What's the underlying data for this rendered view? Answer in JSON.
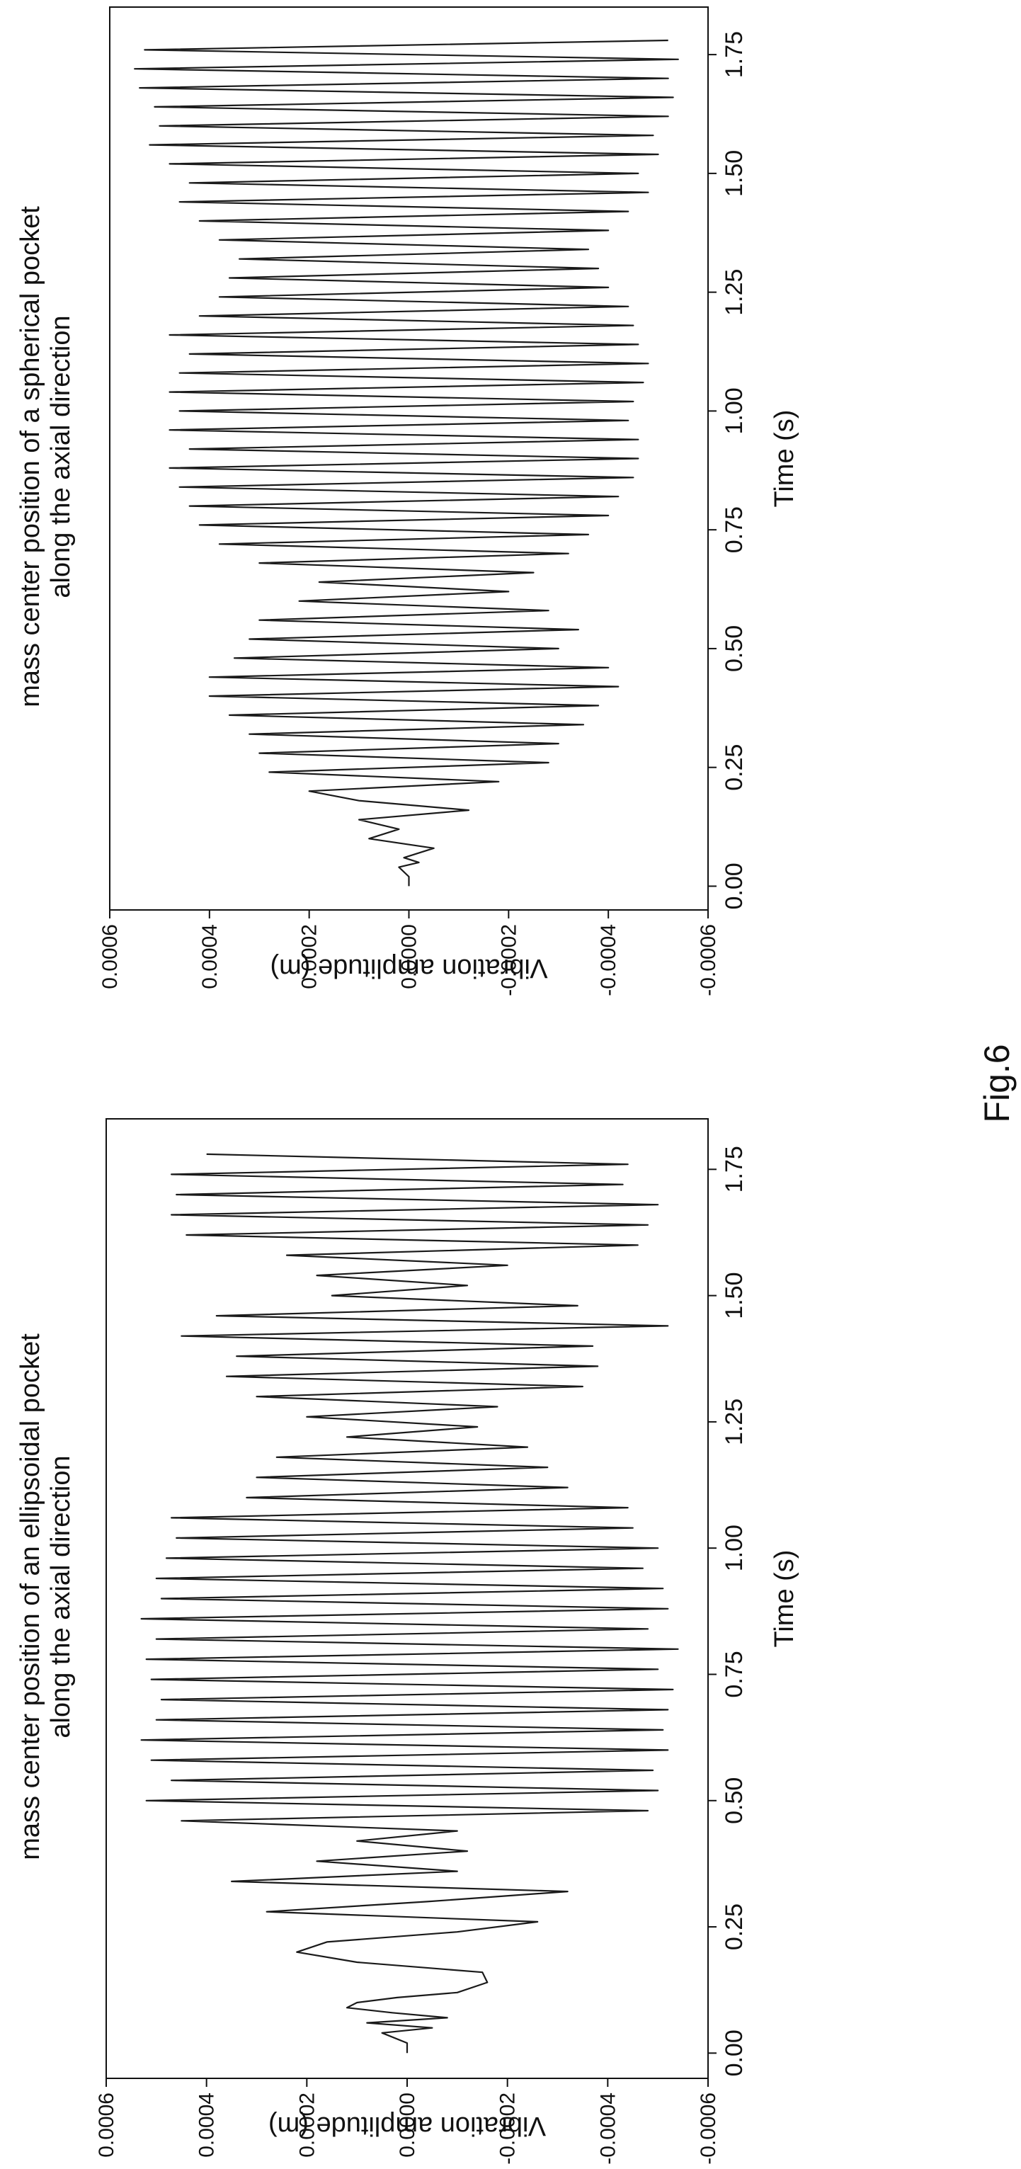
{
  "figure_label": "Fig.6",
  "chart_data": [
    {
      "type": "line",
      "title_line1": "mass center position of an ellipsoidal pocket",
      "title_line2": "along the axial direction",
      "xlabel": "Time (s)",
      "ylabel": "Vibration amplitude (m)",
      "xlim": [
        -0.05,
        1.85
      ],
      "ylim": [
        -0.0006,
        0.0006
      ],
      "x_ticks": [
        "0.00",
        "0.25",
        "0.50",
        "0.75",
        "1.00",
        "1.25",
        "1.50",
        "1.75"
      ],
      "y_ticks": [
        "0.0006",
        "0.0004",
        "0.0002",
        "0.0000",
        "-0.0002",
        "-0.0004",
        "-0.0006"
      ],
      "grid": false,
      "series": [
        {
          "color": "#1a1a1a",
          "x": [
            0.0,
            0.02,
            0.04,
            0.05,
            0.06,
            0.07,
            0.08,
            0.09,
            0.1,
            0.11,
            0.12,
            0.14,
            0.16,
            0.18,
            0.2,
            0.22,
            0.24,
            0.26,
            0.28,
            0.3,
            0.32,
            0.34,
            0.36,
            0.38,
            0.4,
            0.42,
            0.44,
            0.46,
            0.48,
            0.5,
            0.52,
            0.54,
            0.56,
            0.58,
            0.6,
            0.62,
            0.64,
            0.66,
            0.68,
            0.7,
            0.72,
            0.74,
            0.76,
            0.78,
            0.8,
            0.82,
            0.84,
            0.86,
            0.88,
            0.9,
            0.92,
            0.94,
            0.96,
            0.98,
            1.0,
            1.02,
            1.04,
            1.06,
            1.08,
            1.1,
            1.12,
            1.14,
            1.16,
            1.18,
            1.2,
            1.22,
            1.24,
            1.26,
            1.28,
            1.3,
            1.32,
            1.34,
            1.36,
            1.38,
            1.4,
            1.42,
            1.44,
            1.46,
            1.48,
            1.5,
            1.52,
            1.54,
            1.56,
            1.58,
            1.6,
            1.62,
            1.64,
            1.66,
            1.68,
            1.7,
            1.72,
            1.74,
            1.76,
            1.78
          ],
          "y": [
            0.0,
            0.0,
            5e-05,
            -5e-05,
            8e-05,
            -8e-05,
            3e-05,
            0.00012,
            0.0001,
            2e-05,
            -0.0001,
            -0.00016,
            -0.00015,
            0.0001,
            0.00022,
            0.00016,
            -0.0001,
            -0.00026,
            0.00028,
            -4e-05,
            -0.00032,
            0.00035,
            -0.0001,
            0.00018,
            -0.00012,
            0.0001,
            -0.0001,
            0.00045,
            -0.00048,
            0.00052,
            -0.0005,
            0.00047,
            -0.00049,
            0.00051,
            -0.00052,
            0.00053,
            -0.00051,
            0.0005,
            -0.00052,
            0.00049,
            -0.00053,
            0.00051,
            -0.0005,
            0.00052,
            -0.00054,
            0.0005,
            -0.00048,
            0.00053,
            -0.00052,
            0.00049,
            -0.00051,
            0.0005,
            -0.00047,
            0.00048,
            -0.0005,
            0.00046,
            -0.00045,
            0.00047,
            -0.00044,
            0.00032,
            -0.00032,
            0.0003,
            -0.00028,
            0.00026,
            -0.00024,
            0.00012,
            -0.00014,
            0.0002,
            -0.00018,
            0.0003,
            -0.00035,
            0.00036,
            -0.00038,
            0.00034,
            -0.00037,
            0.00045,
            -0.00052,
            0.00038,
            -0.00034,
            0.00015,
            -0.00012,
            0.00018,
            -0.0002,
            0.00024,
            -0.00046,
            0.00044,
            -0.00048,
            0.00047,
            -0.0005,
            0.00046,
            -0.00043,
            0.00047,
            -0.00044,
            0.0004
          ]
        }
      ]
    },
    {
      "type": "line",
      "title_line1": "mass center position of a spherical pocket",
      "title_line2": "along the axial direction",
      "xlabel": "Time (s)",
      "ylabel": "Vibration amplitude (m)",
      "xlim": [
        -0.05,
        1.85
      ],
      "ylim": [
        -0.0006,
        0.0006
      ],
      "x_ticks": [
        "0.00",
        "0.25",
        "0.50",
        "0.75",
        "1.00",
        "1.25",
        "1.50",
        "1.75"
      ],
      "y_ticks": [
        "0.0006",
        "0.0004",
        "0.0002",
        "0.0000",
        "-0.0002",
        "-0.0004",
        "-0.0006"
      ],
      "grid": false,
      "series": [
        {
          "color": "#1a1a1a",
          "x": [
            0.0,
            0.02,
            0.04,
            0.05,
            0.06,
            0.08,
            0.1,
            0.12,
            0.14,
            0.16,
            0.18,
            0.2,
            0.22,
            0.24,
            0.26,
            0.28,
            0.3,
            0.32,
            0.34,
            0.36,
            0.38,
            0.4,
            0.42,
            0.44,
            0.46,
            0.48,
            0.5,
            0.52,
            0.54,
            0.56,
            0.58,
            0.6,
            0.62,
            0.64,
            0.66,
            0.68,
            0.7,
            0.72,
            0.74,
            0.76,
            0.78,
            0.8,
            0.82,
            0.84,
            0.86,
            0.88,
            0.9,
            0.92,
            0.94,
            0.96,
            0.98,
            1.0,
            1.02,
            1.04,
            1.06,
            1.08,
            1.1,
            1.12,
            1.14,
            1.16,
            1.18,
            1.2,
            1.22,
            1.24,
            1.26,
            1.28,
            1.3,
            1.32,
            1.34,
            1.36,
            1.38,
            1.4,
            1.42,
            1.44,
            1.46,
            1.48,
            1.5,
            1.52,
            1.54,
            1.56,
            1.58,
            1.6,
            1.62,
            1.64,
            1.66,
            1.68,
            1.7,
            1.72,
            1.74,
            1.76,
            1.78
          ],
          "y": [
            0.0,
            0.0,
            2e-05,
            -2e-05,
            1e-05,
            -5e-05,
            8e-05,
            2e-05,
            0.0001,
            -0.00012,
            0.0001,
            0.0002,
            -0.00018,
            0.00028,
            -0.00028,
            0.0003,
            -0.0003,
            0.00032,
            -0.00035,
            0.00036,
            -0.00038,
            0.0004,
            -0.00042,
            0.0004,
            -0.0004,
            0.00035,
            -0.0003,
            0.00032,
            -0.00034,
            0.0003,
            -0.00028,
            0.00022,
            -0.0002,
            0.00018,
            -0.00025,
            0.0003,
            -0.00032,
            0.00038,
            -0.00036,
            0.00042,
            -0.0004,
            0.00044,
            -0.00042,
            0.00046,
            -0.00045,
            0.00048,
            -0.00046,
            0.00044,
            -0.00046,
            0.00048,
            -0.00044,
            0.00046,
            -0.00045,
            0.00048,
            -0.00047,
            0.00046,
            -0.00048,
            0.00044,
            -0.00046,
            0.00048,
            -0.00045,
            0.00042,
            -0.00044,
            0.00038,
            -0.0004,
            0.00036,
            -0.00038,
            0.00034,
            -0.00036,
            0.00038,
            -0.0004,
            0.00042,
            -0.00044,
            0.00046,
            -0.00048,
            0.00044,
            -0.00046,
            0.00048,
            -0.0005,
            0.00052,
            -0.00049,
            0.0005,
            -0.00052,
            0.00051,
            -0.00053,
            0.00054,
            -0.00052,
            0.00055,
            -0.00054,
            0.00053,
            -0.00052
          ]
        }
      ]
    }
  ]
}
